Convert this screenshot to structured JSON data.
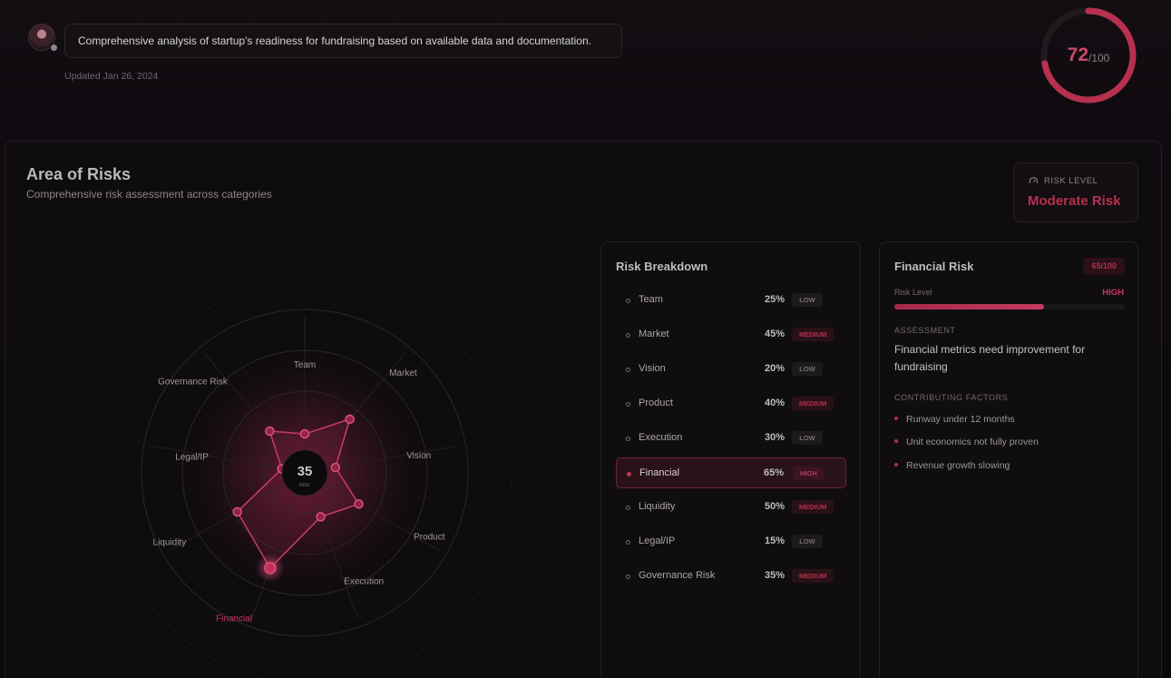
{
  "header": {
    "summary": "Comprehensive analysis of startup's readiness for fundraising based on available data and documentation.",
    "updated": "Updated Jan 26, 2024",
    "score_value": "72",
    "score_suffix": "/100",
    "score_fraction": 0.72
  },
  "risks": {
    "title": "Area of Risks",
    "subtitle": "Comprehensive risk assessment across categories",
    "risk_level_label": "RISK LEVEL",
    "risk_level_value": "Moderate Risk"
  },
  "radar": {
    "center_value": "35",
    "center_label": "RISK",
    "categories": [
      "Team",
      "Market",
      "Vision",
      "Product",
      "Execution",
      "Financial",
      "Liquidity",
      "Legal/IP",
      "Governance Risk"
    ],
    "values": [
      25,
      45,
      20,
      40,
      30,
      65,
      50,
      15,
      35
    ],
    "highlight": "Financial"
  },
  "breakdown": {
    "title": "Risk Breakdown",
    "rows": [
      {
        "name": "Team",
        "pct": "25%",
        "level": "LOW",
        "kind": "low"
      },
      {
        "name": "Market",
        "pct": "45%",
        "level": "MEDIUM",
        "kind": "medium"
      },
      {
        "name": "Vision",
        "pct": "20%",
        "level": "LOW",
        "kind": "low"
      },
      {
        "name": "Product",
        "pct": "40%",
        "level": "MEDIUM",
        "kind": "medium"
      },
      {
        "name": "Execution",
        "pct": "30%",
        "level": "LOW",
        "kind": "low"
      },
      {
        "name": "Financial",
        "pct": "65%",
        "level": "HIGH",
        "kind": "high",
        "active": true
      },
      {
        "name": "Liquidity",
        "pct": "50%",
        "level": "MEDIUM",
        "kind": "medium"
      },
      {
        "name": "Legal/IP",
        "pct": "15%",
        "level": "LOW",
        "kind": "low"
      },
      {
        "name": "Governance Risk",
        "pct": "35%",
        "level": "MEDIUM",
        "kind": "medium"
      }
    ]
  },
  "detail": {
    "title": "Financial Risk",
    "score": "65/100",
    "risk_level_label": "Risk Level",
    "risk_level_value": "HIGH",
    "risk_fraction": 0.65,
    "assessment_label": "ASSESSMENT",
    "assessment": "Financial metrics need improvement for fundraising",
    "factors_label": "CONTRIBUTING FACTORS",
    "factors": [
      "Runway under 12 months",
      "Unit economics not fully proven",
      "Revenue growth slowing"
    ]
  },
  "colors": {
    "accent": "#c0395b",
    "background": "#0c090c"
  }
}
